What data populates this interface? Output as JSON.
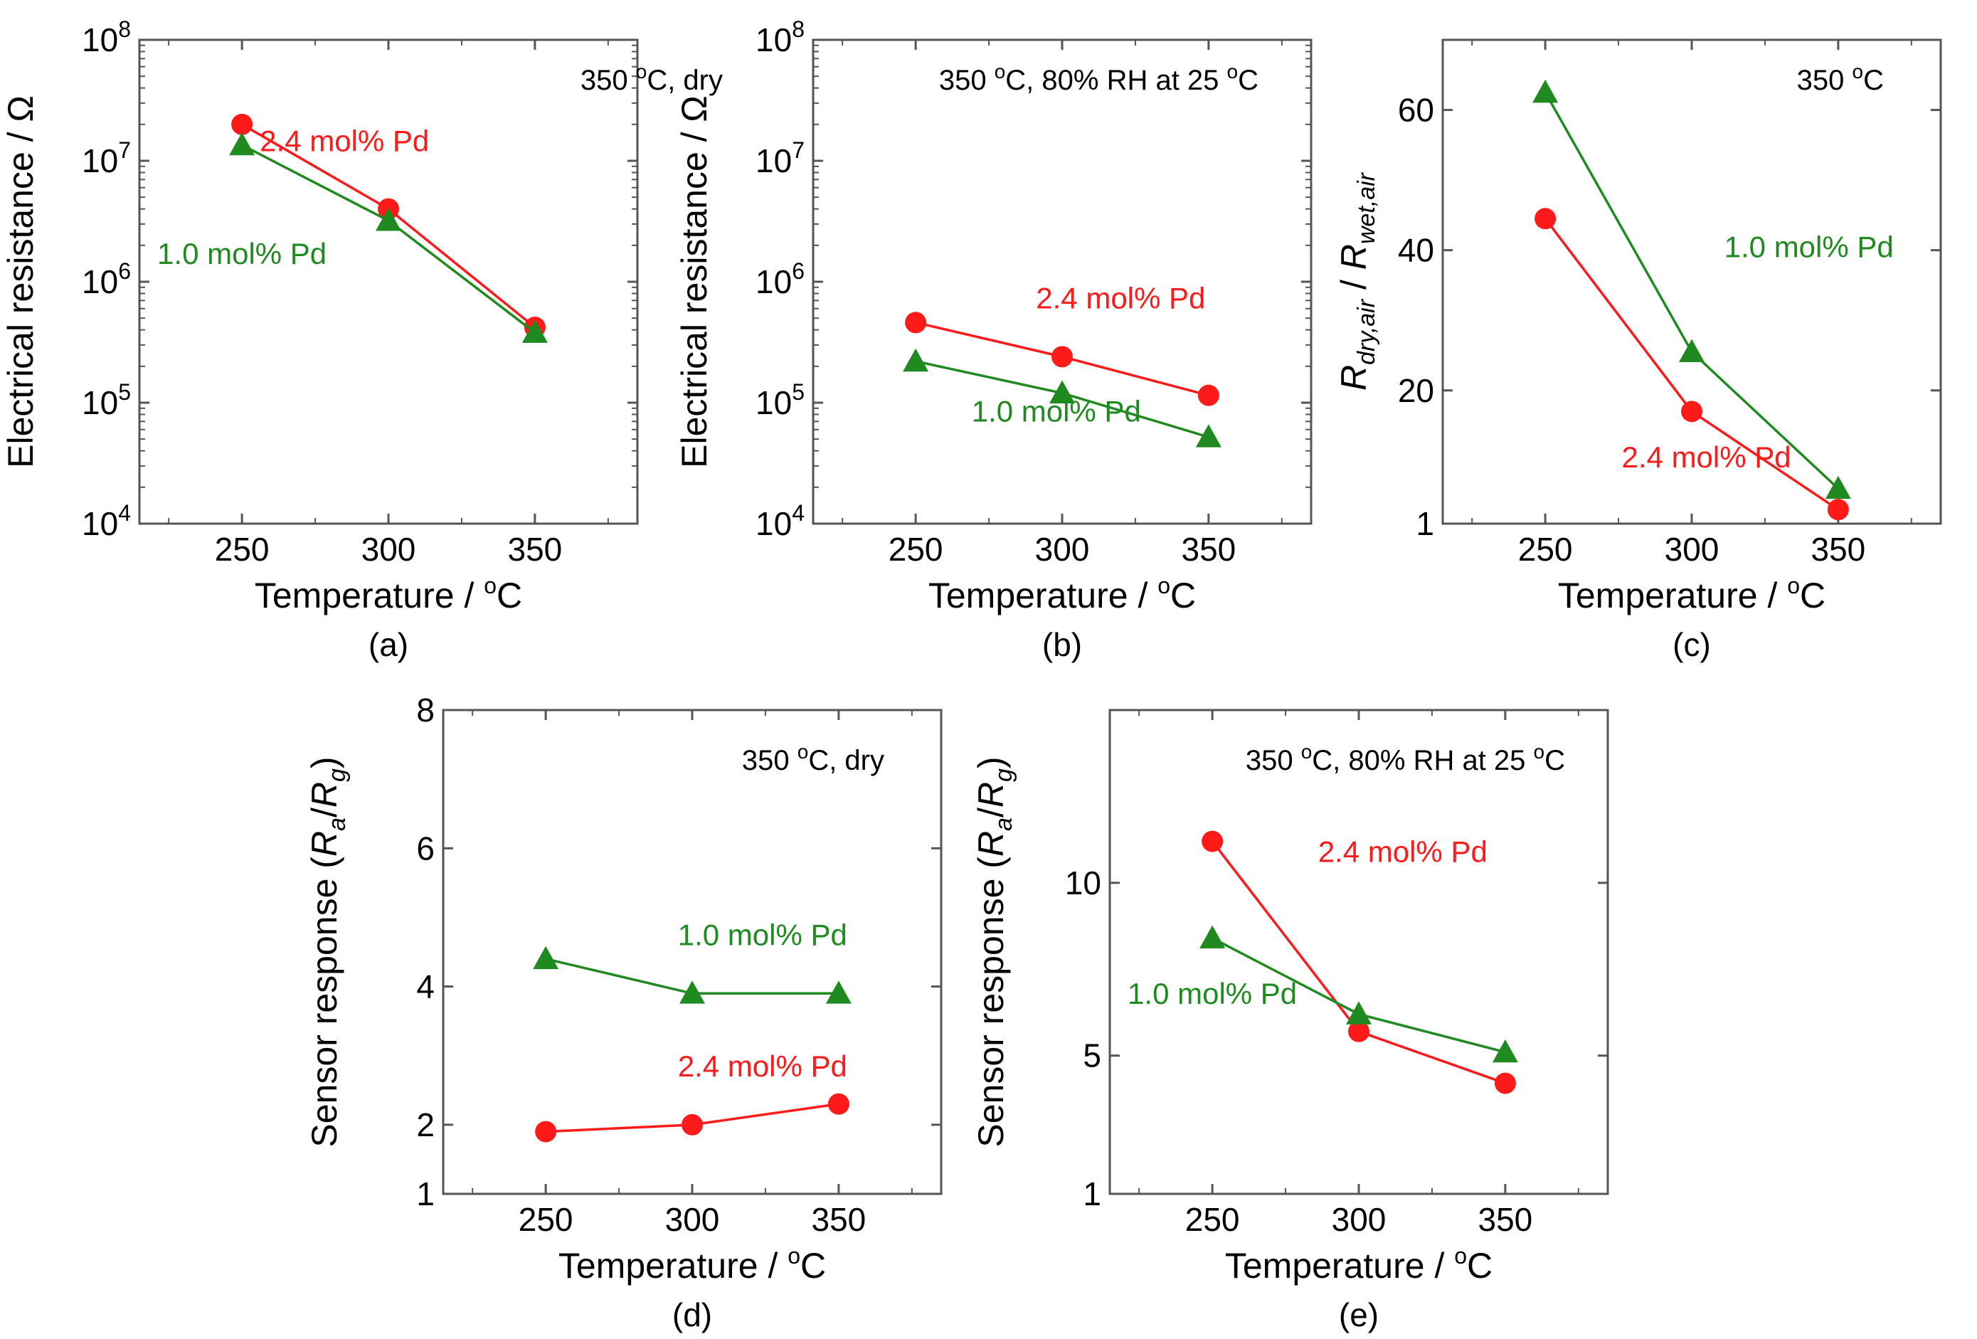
{
  "colors": {
    "red": "#ff1a1a",
    "green": "#1f8a1f",
    "axis": "#555555"
  },
  "chart_data": [
    {
      "id": "a",
      "type": "line",
      "panel_label": "(a)",
      "title": "350 ºC, dry",
      "title_parts": [
        "350 ",
        "o",
        "C, dry"
      ],
      "xlabel": "Temperature / ºC",
      "xlabel_parts": [
        "Temperature / ",
        "o",
        "C"
      ],
      "ylabel": "Electrical resistance / Ω",
      "xscale": "linear",
      "xlim": [
        215,
        385
      ],
      "xticks": [
        250,
        300,
        350
      ],
      "yscale": "log",
      "ylim": [
        10000,
        100000000
      ],
      "yticks": [
        {
          "v": 10000,
          "b": "10",
          "e": "4"
        },
        {
          "v": 100000,
          "b": "10",
          "e": "5"
        },
        {
          "v": 1000000,
          "b": "10",
          "e": "6"
        },
        {
          "v": 10000000,
          "b": "10",
          "e": "7"
        },
        {
          "v": 100000000,
          "b": "10",
          "e": "8"
        }
      ],
      "x": [
        250,
        300,
        350
      ],
      "series": [
        {
          "name": "2.4 mol% Pd",
          "color": "red",
          "marker": "circle",
          "values": [
            20000000,
            4000000,
            420000
          ],
          "label_at": [
            285,
            12000000
          ]
        },
        {
          "name": "1.0 mol% Pd",
          "color": "green",
          "marker": "triangle",
          "values": [
            13500000,
            3200000,
            380000
          ],
          "label_at": [
            250,
            1400000
          ]
        }
      ]
    },
    {
      "id": "b",
      "type": "line",
      "panel_label": "(b)",
      "title": "350 ºC, 80% RH at 25 ºC",
      "title_parts": [
        "350 ",
        "o",
        "C, 80% RH at 25 ",
        "o",
        "C"
      ],
      "xlabel": "Temperature / ºC",
      "xlabel_parts": [
        "Temperature / ",
        "o",
        "C"
      ],
      "ylabel": "Electrical resistance / Ω",
      "xscale": "linear",
      "xlim": [
        215,
        385
      ],
      "xticks": [
        250,
        300,
        350
      ],
      "yscale": "log",
      "ylim": [
        10000,
        100000000
      ],
      "yticks": [
        {
          "v": 10000,
          "b": "10",
          "e": "4"
        },
        {
          "v": 100000,
          "b": "10",
          "e": "5"
        },
        {
          "v": 1000000,
          "b": "10",
          "e": "6"
        },
        {
          "v": 10000000,
          "b": "10",
          "e": "7"
        },
        {
          "v": 100000000,
          "b": "10",
          "e": "8"
        }
      ],
      "x": [
        250,
        300,
        350
      ],
      "series": [
        {
          "name": "2.4 mol% Pd",
          "color": "red",
          "marker": "circle",
          "values": [
            460000,
            240000,
            115000
          ],
          "label_at": [
            320,
            600000
          ]
        },
        {
          "name": "1.0 mol% Pd",
          "color": "green",
          "marker": "triangle",
          "values": [
            220000,
            120000,
            52000
          ],
          "label_at": [
            298,
            70000
          ]
        }
      ]
    },
    {
      "id": "c",
      "type": "line",
      "panel_label": "(c)",
      "title": "350 ºC",
      "title_parts": [
        "350 ",
        "o",
        "C"
      ],
      "xlabel": "Temperature / ºC",
      "xlabel_parts": [
        "Temperature / ",
        "o",
        "C"
      ],
      "ylabel": "Rdry,air / Rwet,air",
      "xscale": "linear",
      "xlim": [
        215,
        385
      ],
      "xticks": [
        250,
        300,
        350
      ],
      "yscale": "linear",
      "ylim": [
        1,
        70
      ],
      "yticks": [
        {
          "v": 1,
          "t": "1"
        },
        {
          "v": 20,
          "t": "20"
        },
        {
          "v": 40,
          "t": "40"
        },
        {
          "v": 60,
          "t": "60"
        }
      ],
      "x": [
        250,
        300,
        350
      ],
      "series": [
        {
          "name": "2.4 mol% Pd",
          "color": "red",
          "marker": "circle",
          "values": [
            44.5,
            17,
            3
          ],
          "label_at": [
            305,
            9
          ]
        },
        {
          "name": "1.0 mol% Pd",
          "color": "green",
          "marker": "triangle",
          "values": [
            62.5,
            25.5,
            6
          ],
          "label_at": [
            340,
            39
          ]
        }
      ]
    },
    {
      "id": "d",
      "type": "line",
      "panel_label": "(d)",
      "title": "350 ºC, dry",
      "title_parts": [
        "350 ",
        "o",
        "C, dry"
      ],
      "xlabel": "Temperature / ºC",
      "xlabel_parts": [
        "Temperature / ",
        "o",
        "C"
      ],
      "ylabel": "Sensor response (Ra/Rg)",
      "xscale": "linear",
      "xlim": [
        215,
        385
      ],
      "xticks": [
        250,
        300,
        350
      ],
      "yscale": "linear",
      "ylim": [
        1,
        8
      ],
      "yticks": [
        {
          "v": 1,
          "t": "1"
        },
        {
          "v": 2,
          "t": "2"
        },
        {
          "v": 4,
          "t": "4"
        },
        {
          "v": 6,
          "t": "6"
        },
        {
          "v": 8,
          "t": "8"
        }
      ],
      "x": [
        250,
        300,
        350
      ],
      "series": [
        {
          "name": "2.4 mol% Pd",
          "color": "red",
          "marker": "circle",
          "values": [
            1.9,
            2.0,
            2.3
          ],
          "label_at": [
            324,
            2.7
          ]
        },
        {
          "name": "1.0 mol% Pd",
          "color": "green",
          "marker": "triangle",
          "values": [
            4.4,
            3.9,
            3.9
          ],
          "label_at": [
            324,
            4.6
          ]
        }
      ]
    },
    {
      "id": "e",
      "type": "line",
      "panel_label": "(e)",
      "title": "350 ºC, 80% RH at 25 ºC",
      "title_parts": [
        "350 ",
        "o",
        "C, 80% RH at 25 ",
        "o",
        "C"
      ],
      "xlabel": "Temperature / ºC",
      "xlabel_parts": [
        "Temperature / ",
        "o",
        "C"
      ],
      "ylabel": "Sensor response (Ra/Rg)",
      "xscale": "linear",
      "xlim": [
        215,
        385
      ],
      "xticks": [
        250,
        300,
        350
      ],
      "yscale": "linear",
      "ylim": [
        1,
        15
      ],
      "yticks": [
        {
          "v": 1,
          "t": "1"
        },
        {
          "v": 5,
          "t": "5"
        },
        {
          "v": 10,
          "t": "10"
        }
      ],
      "x": [
        250,
        300,
        350
      ],
      "series": [
        {
          "name": "2.4 mol% Pd",
          "color": "red",
          "marker": "circle",
          "values": [
            11.2,
            5.7,
            4.2
          ],
          "label_at": [
            315,
            10.6
          ]
        },
        {
          "name": "1.0 mol% Pd",
          "color": "green",
          "marker": "triangle",
          "values": [
            8.4,
            6.2,
            5.1
          ],
          "label_at": [
            250,
            6.5
          ]
        }
      ]
    }
  ]
}
